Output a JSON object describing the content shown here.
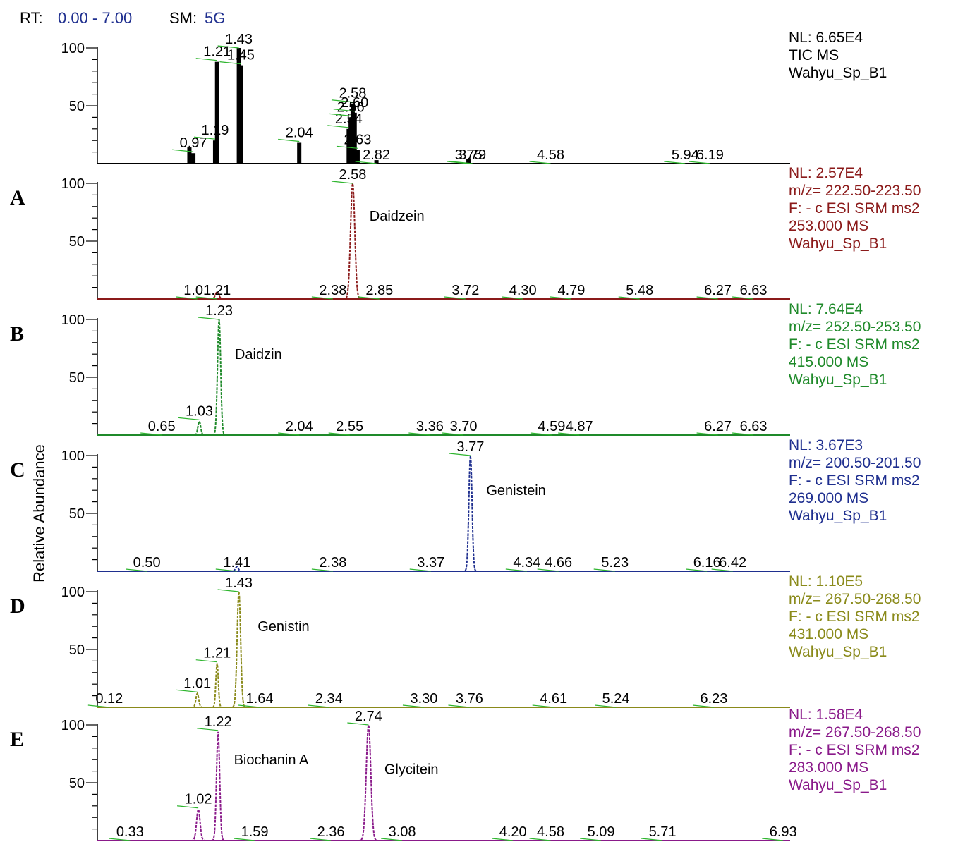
{
  "header": {
    "rt_label": "RT:",
    "rt_range": "0.00 - 7.00",
    "sm_label": "SM:",
    "sm_value": "5G"
  },
  "y_axis_label": "Relative Abundance",
  "chart_data": {
    "type": "line",
    "x_range": [
      0,
      7
    ],
    "y_range": [
      0,
      100
    ],
    "y_ticks": [
      "100",
      "50"
    ],
    "panels": [
      {
        "id": "TIC",
        "label": "",
        "color": "#000000",
        "style": "bars",
        "info": [
          "NL: 6.65E4",
          "TIC  MS",
          "Wahyu_Sp_B1"
        ],
        "peaks": [
          {
            "x": 0.93,
            "y": 14
          },
          {
            "x": 0.97,
            "y": 9
          },
          {
            "x": 1.19,
            "y": 20
          },
          {
            "x": 1.21,
            "y": 88
          },
          {
            "x": 1.43,
            "y": 100
          },
          {
            "x": 1.45,
            "y": 85
          },
          {
            "x": 2.04,
            "y": 18
          },
          {
            "x": 2.54,
            "y": 30
          },
          {
            "x": 2.56,
            "y": 40
          },
          {
            "x": 2.58,
            "y": 52
          },
          {
            "x": 2.6,
            "y": 44
          },
          {
            "x": 2.63,
            "y": 12
          },
          {
            "x": 2.82,
            "y": 3
          },
          {
            "x": 3.75,
            "y": 4
          }
        ],
        "peak_labels": [
          {
            "x": 0.97,
            "text": "0.97"
          },
          {
            "x": 1.19,
            "text": "1.19"
          },
          {
            "x": 1.21,
            "text": "1.21"
          },
          {
            "x": 1.43,
            "text": "1.43"
          },
          {
            "x": 1.45,
            "text": "1.45"
          },
          {
            "x": 2.04,
            "text": "2.04"
          },
          {
            "x": 2.54,
            "text": "2.54"
          },
          {
            "x": 2.56,
            "text": "2.56"
          },
          {
            "x": 2.58,
            "text": "2.58"
          },
          {
            "x": 2.6,
            "text": "2.60"
          },
          {
            "x": 2.63,
            "text": "2.63"
          },
          {
            "x": 2.82,
            "text": "2.82"
          },
          {
            "x": 3.75,
            "text": "3.75"
          },
          {
            "x": 3.79,
            "text": "3.79"
          },
          {
            "x": 4.58,
            "text": "4.58"
          },
          {
            "x": 5.94,
            "text": "5.94"
          },
          {
            "x": 6.19,
            "text": "6.19"
          }
        ],
        "compounds": []
      },
      {
        "id": "A",
        "label": "A",
        "color": "#8b1a1a",
        "style": "line",
        "info": [
          "NL: 2.57E4",
          "m/z= 222.50-223.50",
          "F: - c ESI SRM ms2",
          "253.000   MS",
          "Wahyu_Sp_B1"
        ],
        "peaks": [
          {
            "x": 1.21,
            "y": 6,
            "w": 0.05
          },
          {
            "x": 2.58,
            "y": 100,
            "w": 0.06
          }
        ],
        "peak_labels": [
          {
            "x": 1.01,
            "text": "1.01"
          },
          {
            "x": 1.21,
            "text": "1.21"
          },
          {
            "x": 2.38,
            "text": "2.38"
          },
          {
            "x": 2.58,
            "text": "2.58"
          },
          {
            "x": 2.85,
            "text": "2.85"
          },
          {
            "x": 3.72,
            "text": "3.72"
          },
          {
            "x": 4.3,
            "text": "4.30"
          },
          {
            "x": 4.79,
            "text": "4.79"
          },
          {
            "x": 5.48,
            "text": "5.48"
          },
          {
            "x": 6.27,
            "text": "6.27"
          },
          {
            "x": 6.63,
            "text": "6.63"
          }
        ],
        "compounds": [
          {
            "x": 2.75,
            "y": 72,
            "text": "Daidzein"
          }
        ]
      },
      {
        "id": "B",
        "label": "B",
        "color": "#1f8a2a",
        "style": "line",
        "info": [
          "NL: 7.64E4",
          "m/z= 252.50-253.50",
          "F: - c ESI SRM ms2",
          "415.000   MS",
          "Wahyu_Sp_B1"
        ],
        "peaks": [
          {
            "x": 1.03,
            "y": 12,
            "w": 0.04
          },
          {
            "x": 1.23,
            "y": 100,
            "w": 0.045
          }
        ],
        "peak_labels": [
          {
            "x": 0.65,
            "text": "0.65"
          },
          {
            "x": 1.03,
            "text": "1.03"
          },
          {
            "x": 1.23,
            "text": "1.23"
          },
          {
            "x": 2.04,
            "text": "2.04"
          },
          {
            "x": 2.55,
            "text": "2.55"
          },
          {
            "x": 3.36,
            "text": "3.36"
          },
          {
            "x": 3.7,
            "text": "3.70"
          },
          {
            "x": 4.59,
            "text": "4.59"
          },
          {
            "x": 4.87,
            "text": "4.87"
          },
          {
            "x": 6.27,
            "text": "6.27"
          },
          {
            "x": 6.63,
            "text": "6.63"
          }
        ],
        "compounds": [
          {
            "x": 1.39,
            "y": 70,
            "text": "Daidzin"
          }
        ]
      },
      {
        "id": "C",
        "label": "C",
        "color": "#1f2f8f",
        "style": "line",
        "info": [
          "NL: 3.67E3",
          "m/z= 200.50-201.50",
          "F: - c ESI SRM ms2",
          "269.000   MS",
          "Wahyu_Sp_B1"
        ],
        "peaks": [
          {
            "x": 1.41,
            "y": 4,
            "w": 0.04
          },
          {
            "x": 3.77,
            "y": 100,
            "w": 0.045
          }
        ],
        "peak_labels": [
          {
            "x": 0.5,
            "text": "0.50"
          },
          {
            "x": 1.41,
            "text": "1.41"
          },
          {
            "x": 2.38,
            "text": "2.38"
          },
          {
            "x": 3.37,
            "text": "3.37"
          },
          {
            "x": 3.77,
            "text": "3.77"
          },
          {
            "x": 4.34,
            "text": "4.34"
          },
          {
            "x": 4.66,
            "text": "4.66"
          },
          {
            "x": 5.23,
            "text": "5.23"
          },
          {
            "x": 6.16,
            "text": "6.16"
          },
          {
            "x": 6.42,
            "text": "6.42"
          }
        ],
        "compounds": [
          {
            "x": 3.93,
            "y": 70,
            "text": "Genistein"
          }
        ]
      },
      {
        "id": "D",
        "label": "D",
        "color": "#8a8a1a",
        "style": "line",
        "info": [
          "NL: 1.10E5",
          "m/z= 267.50-268.50",
          "F: - c ESI SRM ms2",
          "431.000   MS",
          "Wahyu_Sp_B1"
        ],
        "peaks": [
          {
            "x": 1.01,
            "y": 12,
            "w": 0.04
          },
          {
            "x": 1.21,
            "y": 38,
            "w": 0.035
          },
          {
            "x": 1.43,
            "y": 100,
            "w": 0.05
          }
        ],
        "peak_labels": [
          {
            "x": 0.12,
            "text": "0.12"
          },
          {
            "x": 1.01,
            "text": "1.01"
          },
          {
            "x": 1.21,
            "text": "1.21"
          },
          {
            "x": 1.43,
            "text": "1.43"
          },
          {
            "x": 1.64,
            "text": "1.64"
          },
          {
            "x": 2.34,
            "text": "2.34"
          },
          {
            "x": 3.3,
            "text": "3.30"
          },
          {
            "x": 3.76,
            "text": "3.76"
          },
          {
            "x": 4.61,
            "text": "4.61"
          },
          {
            "x": 5.24,
            "text": "5.24"
          },
          {
            "x": 6.23,
            "text": "6.23"
          }
        ],
        "compounds": [
          {
            "x": 1.62,
            "y": 70,
            "text": "Genistin"
          }
        ]
      },
      {
        "id": "E",
        "label": "E",
        "color": "#8a1a8a",
        "style": "line",
        "info": [
          "NL: 1.58E4",
          "m/z= 267.50-268.50",
          "F: - c ESI SRM ms2",
          "283.000   MS",
          "Wahyu_Sp_B1"
        ],
        "peaks": [
          {
            "x": 1.02,
            "y": 27,
            "w": 0.05
          },
          {
            "x": 1.22,
            "y": 94,
            "w": 0.045
          },
          {
            "x": 2.74,
            "y": 100,
            "w": 0.065
          }
        ],
        "peak_labels": [
          {
            "x": 0.33,
            "text": "0.33"
          },
          {
            "x": 1.02,
            "text": "1.02"
          },
          {
            "x": 1.22,
            "text": "1.22"
          },
          {
            "x": 1.59,
            "text": "1.59"
          },
          {
            "x": 2.36,
            "text": "2.36"
          },
          {
            "x": 2.74,
            "text": "2.74"
          },
          {
            "x": 3.08,
            "text": "3.08"
          },
          {
            "x": 4.2,
            "text": "4.20"
          },
          {
            "x": 4.58,
            "text": "4.58"
          },
          {
            "x": 5.09,
            "text": "5.09"
          },
          {
            "x": 5.71,
            "text": "5.71"
          },
          {
            "x": 6.93,
            "text": "6.93"
          }
        ],
        "compounds": [
          {
            "x": 1.38,
            "y": 70,
            "text": "Biochanin A"
          },
          {
            "x": 2.9,
            "y": 62,
            "text": "Glycitein"
          }
        ]
      }
    ]
  }
}
